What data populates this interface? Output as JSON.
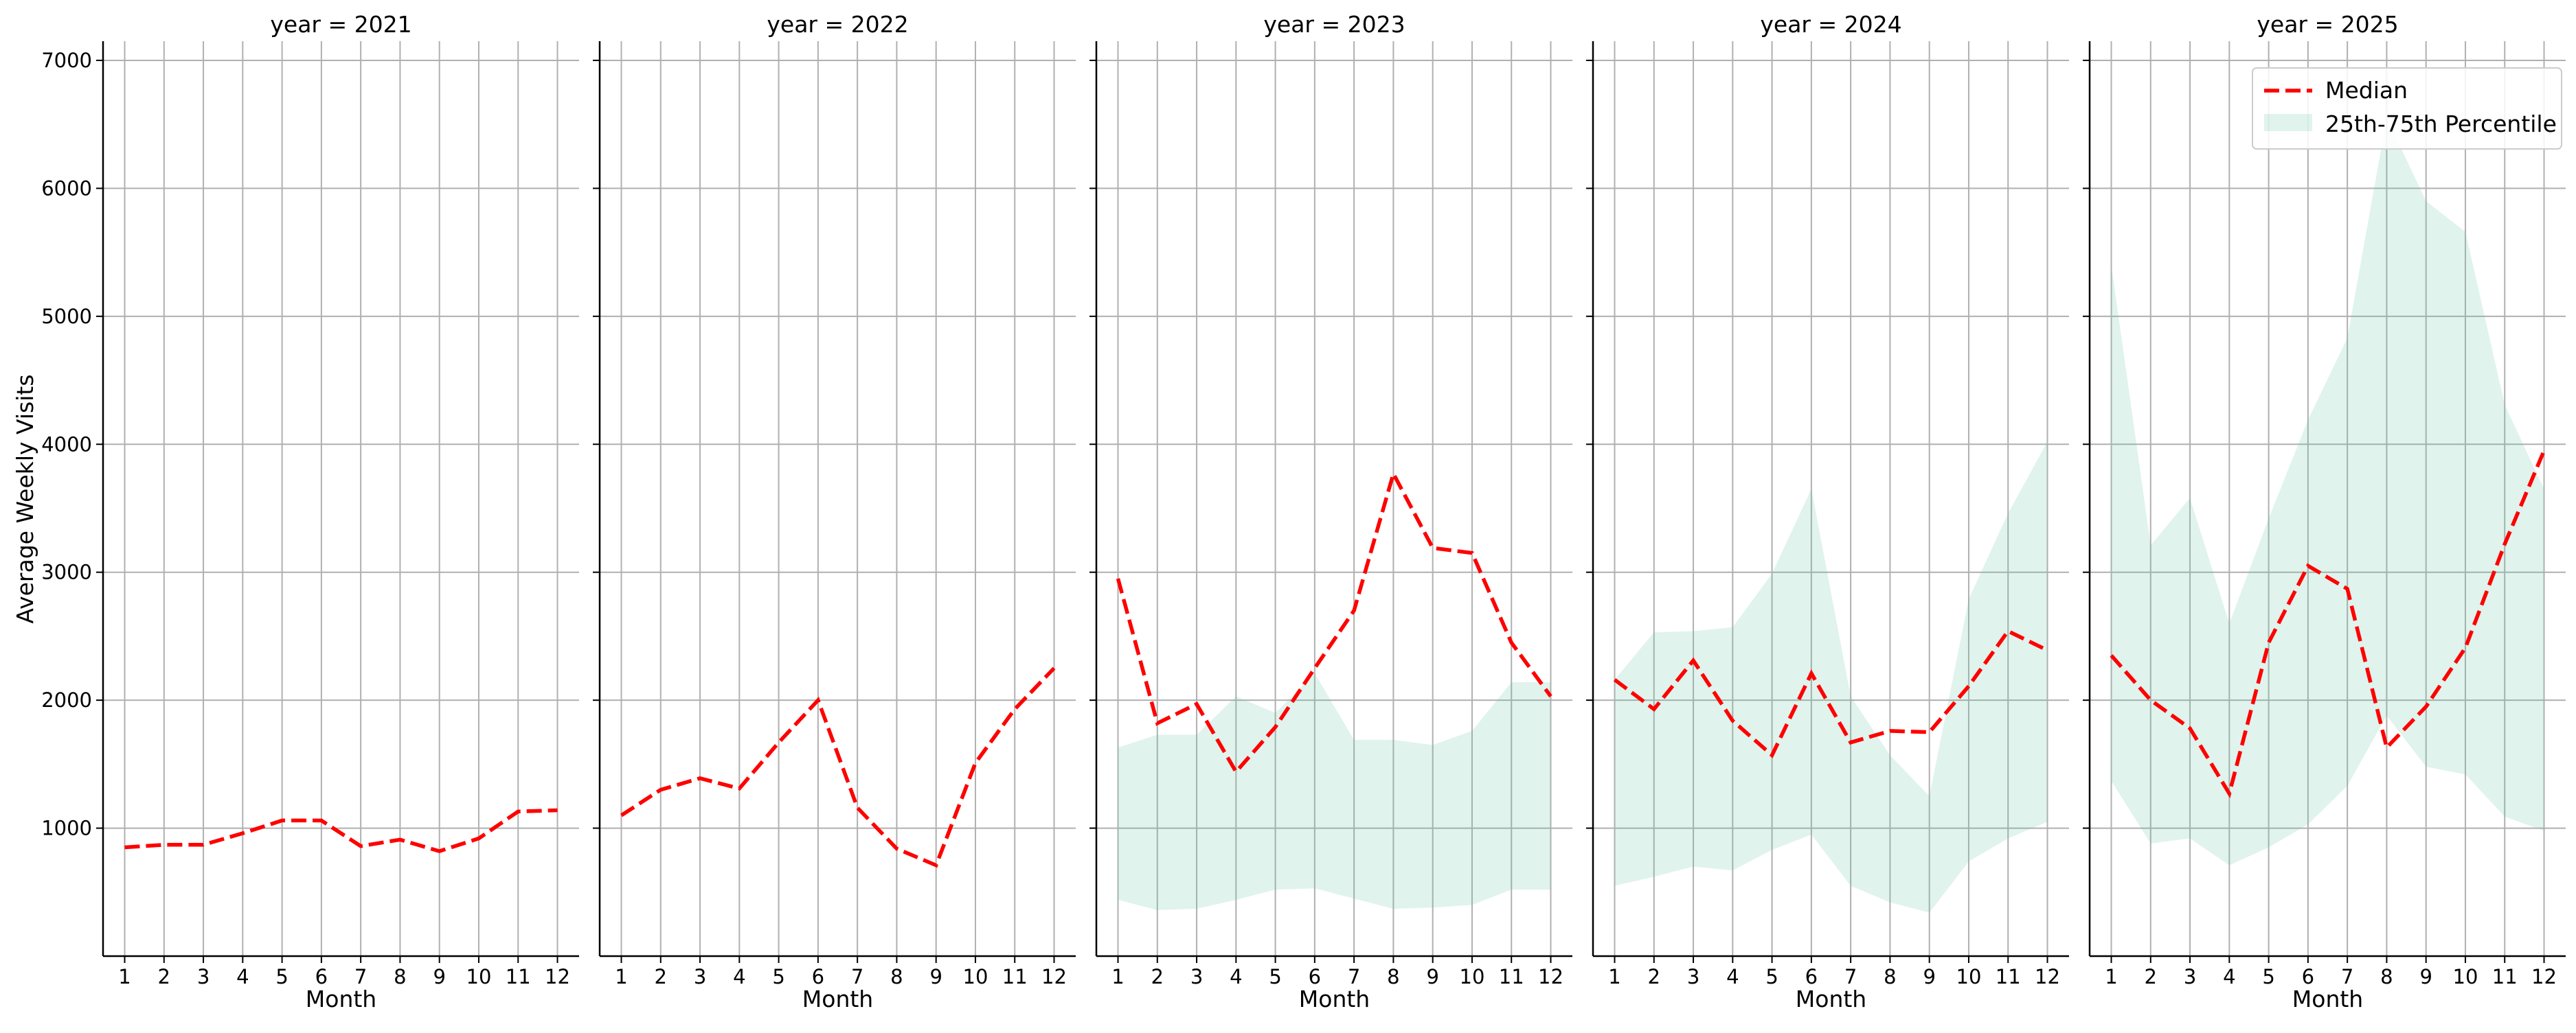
{
  "colors": {
    "median": "#ff0000",
    "band": "#66c2a5",
    "band_opacity": 0.2,
    "grid": "#b0b0b0",
    "axis": "#000000"
  },
  "legend": {
    "placement": "top-right of last panel",
    "median_label": "Median",
    "band_label": "25th-75th Percentile"
  },
  "chart_data": {
    "type": "line",
    "facet_by": "year",
    "shared_y": true,
    "xlabel": "Month",
    "ylabel": "Average Weekly Visits",
    "x_ticks": [
      1,
      2,
      3,
      4,
      5,
      6,
      7,
      8,
      9,
      10,
      11,
      12
    ],
    "y_ticks": [
      1000,
      2000,
      3000,
      4000,
      5000,
      6000,
      7000
    ],
    "ylim": [
      0,
      7150
    ],
    "xlim": [
      0.45,
      12.55
    ],
    "grid": true,
    "panels": [
      {
        "title": "year = 2021",
        "median": [
          850,
          870,
          870,
          960,
          1060,
          1060,
          860,
          910,
          820,
          920,
          1130,
          1140
        ],
        "p25": null,
        "p75": null
      },
      {
        "title": "year = 2022",
        "median": [
          1100,
          1300,
          1390,
          1310,
          1670,
          2000,
          1160,
          840,
          710,
          1510,
          1930,
          2250
        ],
        "p25": null,
        "p75": null
      },
      {
        "title": "year = 2023",
        "median": [
          2950,
          1820,
          1970,
          1440,
          1790,
          2250,
          2700,
          3770,
          3190,
          3150,
          2450,
          2030
        ],
        "p25": [
          440,
          360,
          370,
          440,
          520,
          530,
          450,
          370,
          380,
          400,
          520,
          520
        ],
        "p75": [
          1630,
          1730,
          1730,
          2030,
          1900,
          2210,
          1690,
          1690,
          1650,
          1760,
          2140,
          2140
        ]
      },
      {
        "title": "year = 2024",
        "median": [
          2160,
          1930,
          2310,
          1840,
          1570,
          2210,
          1670,
          1760,
          1750,
          2110,
          2540,
          2390
        ],
        "p25": [
          550,
          620,
          700,
          670,
          830,
          950,
          550,
          420,
          340,
          740,
          920,
          1050
        ],
        "p75": [
          2160,
          2530,
          2540,
          2570,
          2990,
          3650,
          2030,
          1570,
          1250,
          2790,
          3460,
          4020
        ]
      },
      {
        "title": "year = 2025",
        "median": [
          2350,
          2000,
          1780,
          1270,
          2450,
          3050,
          2870,
          1630,
          1950,
          2410,
          3220,
          3950
        ],
        "p25": [
          1370,
          880,
          920,
          710,
          850,
          1030,
          1330,
          1880,
          1480,
          1420,
          1090,
          980
        ],
        "p75": [
          5400,
          3210,
          3580,
          2600,
          3420,
          4190,
          4830,
          6550,
          5900,
          5660,
          4310,
          3650
        ]
      }
    ]
  }
}
